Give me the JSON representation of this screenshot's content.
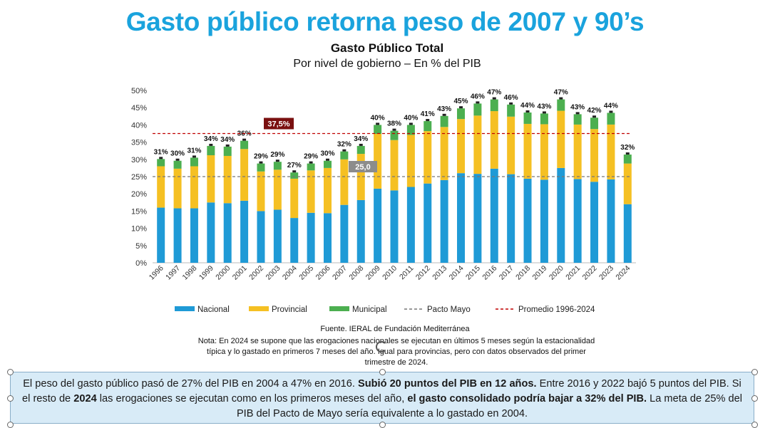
{
  "header": {
    "headline": "Gasto público retorna peso de 2007 y 90’s",
    "title": "Gasto Público Total",
    "subtitle": "Por nivel de gobierno – En % del PIB"
  },
  "chart_data": {
    "type": "bar",
    "stacked": true,
    "categories": [
      "1996",
      "1997",
      "1998",
      "1999",
      "2000",
      "2001",
      "2002",
      "2003",
      "2004",
      "2005",
      "2006",
      "2007",
      "2008",
      "2009",
      "2010",
      "2011",
      "2012",
      "2013",
      "2014",
      "2015",
      "2016",
      "2017",
      "2018",
      "2019",
      "2020",
      "2021",
      "2022",
      "2023",
      "2024"
    ],
    "series": [
      {
        "name": "Nacional",
        "color": "#1f9ad6",
        "values": [
          16,
          15.8,
          15.8,
          17.5,
          17.3,
          18,
          15,
          15.4,
          13,
          14.5,
          14.4,
          16.8,
          18.2,
          21.5,
          21,
          22,
          23,
          24,
          26,
          25.8,
          27.3,
          25.7,
          24.4,
          24.1,
          27.5,
          24.3,
          23.5,
          24.2,
          17
        ]
      },
      {
        "name": "Provincial",
        "color": "#f5c023",
        "values": [
          12,
          11.5,
          12.2,
          13.7,
          13.7,
          15,
          11.5,
          11.6,
          11.4,
          12.3,
          13.1,
          13.2,
          13.4,
          15.9,
          14.6,
          15.1,
          15.2,
          15.4,
          15.7,
          16.9,
          16.7,
          16.7,
          15.9,
          16.1,
          16.6,
          15.8,
          15.3,
          15.9,
          11.8
        ]
      },
      {
        "name": "Municipal",
        "color": "#4caf50",
        "values": [
          2.1,
          2.3,
          2.5,
          2.7,
          2.7,
          2.4,
          2.3,
          2.3,
          1.8,
          2,
          2.1,
          2.3,
          2.3,
          2.6,
          2.7,
          2.9,
          2.9,
          3.2,
          3.1,
          3.5,
          3.4,
          3.5,
          3.3,
          3.1,
          3.3,
          3,
          3.3,
          3.4,
          2.6
        ]
      }
    ],
    "total_labels": [
      "31%",
      "30%",
      "31%",
      "34%",
      "34%",
      "36%",
      "29%",
      "29%",
      "27%",
      "29%",
      "30%",
      "32%",
      "34%",
      "40%",
      "38%",
      "40%",
      "41%",
      "43%",
      "45%",
      "46%",
      "47%",
      "46%",
      "44%",
      "43%",
      "47%",
      "43%",
      "42%",
      "44%",
      "32%"
    ],
    "reference_lines": [
      {
        "name": "Pacto Mayo",
        "value": 25.0,
        "label": "25,0",
        "color": "#777777",
        "label_bg": "#8c8c8c"
      },
      {
        "name": "Promedio 1996-2024",
        "value": 37.5,
        "label": "37,5%",
        "color": "#c00000",
        "label_bg": "#7a1010"
      }
    ],
    "yticks": [
      "0%",
      "5%",
      "10%",
      "15%",
      "20%",
      "25%",
      "30%",
      "35%",
      "40%",
      "45%",
      "50%"
    ],
    "ylim": [
      0,
      50
    ],
    "grid": false,
    "legend_position": "bottom",
    "legend": [
      {
        "label": "Nacional",
        "kind": "bar",
        "color": "#1f9ad6"
      },
      {
        "label": "Provincial",
        "kind": "bar",
        "color": "#f5c023"
      },
      {
        "label": "Municipal",
        "kind": "bar",
        "color": "#4caf50"
      },
      {
        "label": "Pacto Mayo",
        "kind": "dash",
        "color": "#777777"
      },
      {
        "label": "Promedio 1996-2024",
        "kind": "dash",
        "color": "#c00000"
      }
    ]
  },
  "footer": {
    "source": "Fuente. IERAL de Fundación Mediterránea",
    "note_lines": [
      "Nota: En 2024 se supone que las erogaciones nacionales se ejecutan en últimos 5 meses según la estacionalidad",
      "típica y lo gastado en primeros 7 meses del año. Igual para provincias, pero con datos observados del primer",
      "trimestre de 2024."
    ]
  },
  "callout": {
    "t1": "El peso del gasto público pasó de 27% del PIB en 2004 a 47% en 2016. ",
    "b1": "Subió 20 puntos del PIB en 12 años.",
    "t2": " Entre 2016 y 2022 bajó 5 puntos del PIB. Si el resto de ",
    "b2": "2024",
    "t3": " las erogaciones se ejecutan como en los primeros meses del año, ",
    "b3": "el gasto consolidado podría bajar a 32% del PIB.",
    "t4": " La meta de 25% del PIB del Pacto de Mayo sería equivalente a lo gastado en 2004."
  }
}
